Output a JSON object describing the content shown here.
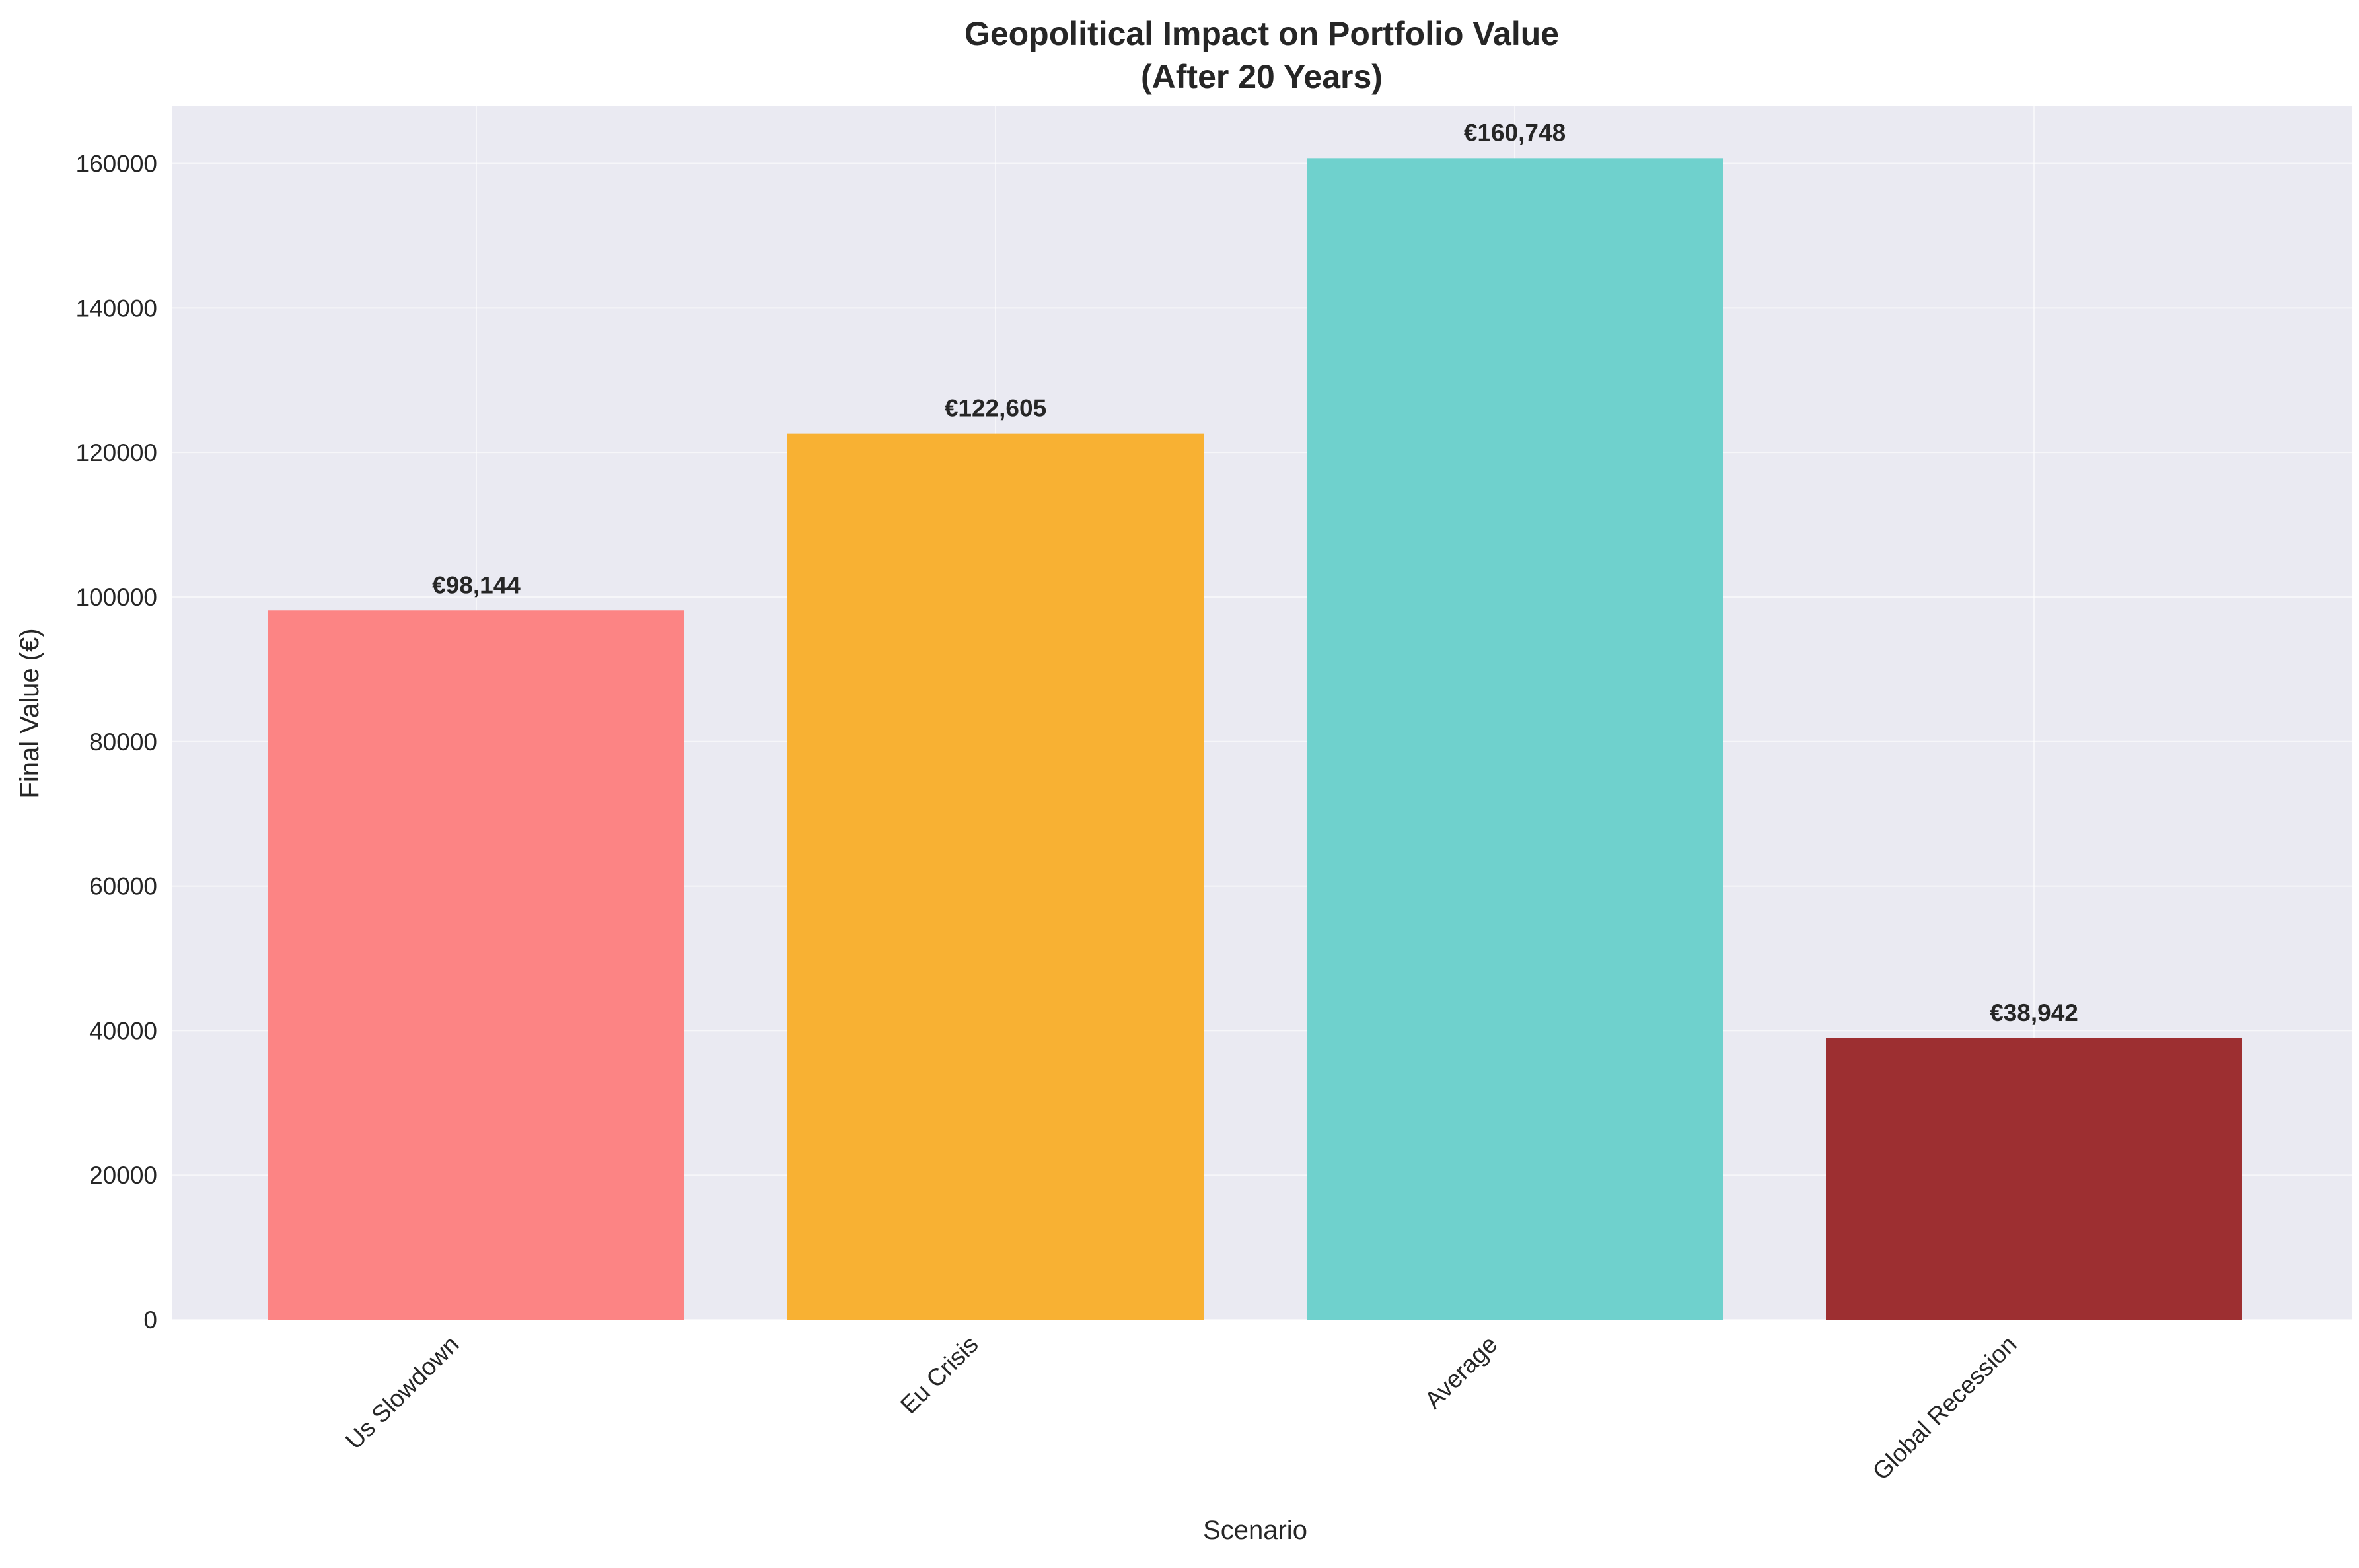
{
  "chart_data": {
    "type": "bar",
    "title_line1": "Geopolitical Impact on Portfolio Value",
    "title_line2": "(After 20 Years)",
    "xlabel": "Scenario",
    "ylabel": "Final Value (€)",
    "ylim": [
      0,
      168000
    ],
    "yticks": [
      0,
      20000,
      40000,
      60000,
      80000,
      100000,
      120000,
      140000,
      160000
    ],
    "grid": true,
    "categories": [
      "Us Slowdown",
      "Eu Crisis",
      "Average",
      "Global Recession"
    ],
    "values": [
      98144,
      122605,
      160748,
      38942
    ],
    "value_labels": [
      "€98,144",
      "€122,605",
      "€160,748",
      "€38,942"
    ],
    "colors": [
      "#fc8484",
      "#f8b133",
      "#6fd1cd",
      "#9d2f31"
    ],
    "background_color": "#eaeaf2"
  }
}
